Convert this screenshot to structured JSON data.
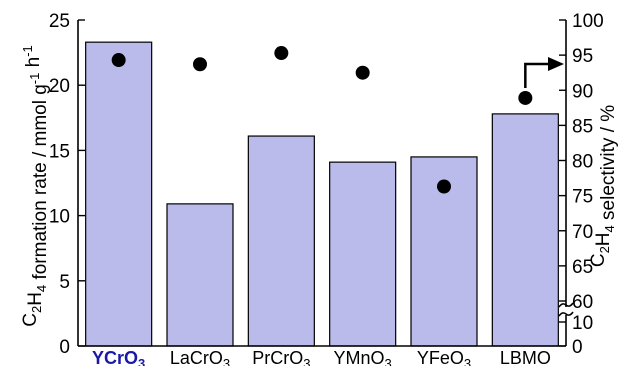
{
  "chart_data": {
    "type": "bar",
    "categories": [
      {
        "base": "YCrO",
        "sub": "3",
        "highlight": true
      },
      {
        "base": "LaCrO",
        "sub": "3",
        "highlight": false
      },
      {
        "base": "PrCrO",
        "sub": "3",
        "highlight": false
      },
      {
        "base": "YMnO",
        "sub": "3",
        "highlight": false
      },
      {
        "base": "YFeO",
        "sub": "3",
        "highlight": false
      },
      {
        "base": "LBMO",
        "sub": "",
        "highlight": false
      }
    ],
    "series": [
      {
        "axis": "left",
        "mark": "bar",
        "values": [
          23.3,
          10.9,
          16.1,
          14.1,
          14.5,
          17.8
        ]
      },
      {
        "axis": "right",
        "mark": "point",
        "values": [
          94.3,
          93.7,
          95.3,
          92.5,
          76.3,
          88.9
        ]
      }
    ],
    "left_axis": {
      "label_parts": [
        {
          "t": "C",
          "s": ""
        },
        {
          "t": "2",
          "s": "sub"
        },
        {
          "t": "H",
          "s": ""
        },
        {
          "t": "4",
          "s": "sub"
        },
        {
          "t": " formation rate / mmol g",
          "s": ""
        },
        {
          "t": "-1",
          "s": "sup"
        },
        {
          "t": " h",
          "s": ""
        },
        {
          "t": "-1",
          "s": "sup"
        }
      ],
      "ylim": [
        0,
        25
      ],
      "ticks": [
        "0",
        "5",
        "10",
        "15",
        "20",
        "25"
      ]
    },
    "right_axis": {
      "label_parts": [
        {
          "t": "C",
          "s": ""
        },
        {
          "t": "2",
          "s": "sub"
        },
        {
          "t": "H",
          "s": ""
        },
        {
          "t": "4",
          "s": "sub"
        },
        {
          "t": " selectivity / %",
          "s": ""
        }
      ],
      "broken": true,
      "lower_ticks": [
        "0",
        "10"
      ],
      "upper_ticks": [
        "60",
        "65",
        "70",
        "75",
        "80",
        "85",
        "90",
        "95",
        "100"
      ],
      "upper_range": [
        60,
        100
      ]
    },
    "annotation": "arrow from LBMO point pointing to right axis"
  }
}
